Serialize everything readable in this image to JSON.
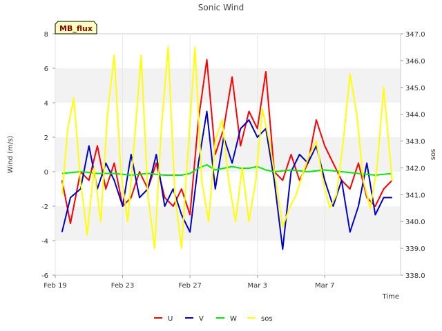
{
  "chart_data": {
    "type": "line",
    "title": "Sonic Wind",
    "badge": "MB_flux",
    "xlabel": "Time",
    "ylabel": "Wind (m/s)",
    "y2label": "sos",
    "x_range_days": [
      0,
      20.5
    ],
    "xticks": [
      {
        "day": 0,
        "label": "Feb 19"
      },
      {
        "day": 4,
        "label": "Feb 23"
      },
      {
        "day": 8,
        "label": "Feb 27"
      },
      {
        "day": 12,
        "label": "Mar 3"
      },
      {
        "day": 16,
        "label": "Mar 7"
      }
    ],
    "ylim": [
      -6,
      8
    ],
    "yticks": [
      -6,
      -4,
      -2,
      0,
      2,
      4,
      6,
      8
    ],
    "y2lim": [
      338.0,
      347.0
    ],
    "y2ticks": [
      "338.0",
      "339.0",
      "340.0",
      "341.0",
      "342.0",
      "343.0",
      "344.0",
      "345.0",
      "346.0",
      "347.0"
    ],
    "grid_bands": [
      [
        -4,
        -2
      ],
      [
        0,
        2
      ],
      [
        4,
        6
      ]
    ],
    "band_color": "#f2f2f2",
    "legend": {
      "position": "bottom-center"
    },
    "series": [
      {
        "name": "U",
        "axis": "left",
        "color": "#ff0000",
        "x": [
          0.4,
          0.9,
          1.5,
          2.0,
          2.5,
          3.0,
          3.5,
          4.0,
          4.5,
          5.0,
          5.5,
          6.0,
          6.5,
          7.0,
          7.5,
          8.0,
          8.5,
          9.0,
          9.5,
          10.0,
          10.5,
          11.0,
          11.5,
          12.0,
          12.5,
          13.0,
          13.5,
          14.0,
          14.5,
          15.0,
          15.5,
          16.0,
          16.5,
          17.0,
          17.5,
          18.0,
          18.5,
          19.0,
          19.5,
          20.0
        ],
        "values": [
          -0.5,
          -3.0,
          0.0,
          -0.5,
          1.5,
          -1.0,
          0.5,
          -2.0,
          -1.5,
          0.0,
          -1.0,
          0.5,
          -1.5,
          -2.0,
          -1.0,
          -2.5,
          3.0,
          6.5,
          1.0,
          2.5,
          5.5,
          1.5,
          3.5,
          2.5,
          5.8,
          0.0,
          -0.5,
          1.0,
          -0.5,
          0.5,
          3.0,
          1.5,
          0.5,
          -0.5,
          -1.0,
          0.5,
          -1.5,
          -2.0,
          -1.0,
          -0.5
        ]
      },
      {
        "name": "V",
        "axis": "left",
        "color": "#0000cc",
        "x": [
          0.4,
          0.9,
          1.5,
          2.0,
          2.5,
          3.0,
          3.5,
          4.0,
          4.5,
          5.0,
          5.5,
          6.0,
          6.5,
          7.0,
          7.5,
          8.0,
          8.5,
          9.0,
          9.5,
          10.0,
          10.5,
          11.0,
          11.5,
          12.0,
          12.5,
          13.0,
          13.5,
          14.0,
          14.5,
          15.0,
          15.5,
          16.0,
          16.5,
          17.0,
          17.5,
          18.0,
          18.5,
          19.0,
          19.5,
          20.0
        ],
        "values": [
          -3.5,
          -1.5,
          -1.0,
          1.5,
          -1.0,
          0.5,
          -0.5,
          -2.0,
          1.0,
          -1.5,
          -1.0,
          1.0,
          -2.0,
          -1.0,
          -2.5,
          -3.5,
          0.5,
          3.5,
          -1.0,
          2.0,
          0.5,
          2.5,
          3.0,
          2.0,
          2.5,
          -0.5,
          -4.5,
          0.0,
          1.0,
          0.5,
          1.5,
          -0.5,
          -2.0,
          -0.5,
          -3.5,
          -2.0,
          0.5,
          -2.5,
          -1.5,
          -1.5
        ]
      },
      {
        "name": "W",
        "axis": "left",
        "color": "#00ee00",
        "x": [
          0.4,
          1.5,
          2.5,
          3.5,
          4.5,
          5.5,
          6.5,
          7.5,
          8.0,
          8.5,
          9.0,
          9.5,
          10.0,
          10.5,
          11.0,
          11.5,
          12.0,
          12.5,
          13.0,
          14.0,
          15.0,
          16.0,
          17.0,
          18.0,
          19.0,
          20.0
        ],
        "values": [
          -0.1,
          0.0,
          -0.1,
          -0.1,
          -0.2,
          -0.1,
          -0.2,
          -0.2,
          -0.1,
          0.2,
          0.4,
          0.1,
          0.2,
          0.3,
          0.2,
          0.2,
          0.3,
          0.1,
          0.0,
          0.1,
          0.0,
          0.1,
          0.0,
          -0.1,
          -0.2,
          -0.1
        ]
      },
      {
        "name": "sos",
        "axis": "right",
        "color": "#ffff00",
        "x": [
          0.4,
          0.75,
          1.1,
          1.5,
          1.9,
          2.3,
          2.7,
          3.1,
          3.5,
          3.9,
          4.3,
          4.7,
          5.1,
          5.5,
          5.9,
          6.3,
          6.7,
          7.1,
          7.5,
          7.9,
          8.3,
          8.7,
          9.1,
          9.5,
          9.9,
          10.3,
          10.7,
          11.1,
          11.5,
          11.9,
          12.3,
          12.7,
          13.1,
          13.5,
          13.9,
          14.3,
          14.7,
          15.1,
          15.5,
          15.9,
          16.3,
          16.7,
          17.1,
          17.5,
          17.9,
          18.3,
          18.7,
          19.1,
          19.5,
          20.0
        ],
        "values": [
          341.0,
          343.5,
          344.6,
          341.5,
          339.5,
          342.0,
          340.0,
          344.0,
          346.2,
          341.8,
          340.0,
          343.0,
          346.2,
          341.0,
          339.0,
          343.5,
          346.5,
          341.0,
          339.0,
          342.8,
          346.5,
          341.5,
          340.0,
          343.0,
          343.8,
          341.5,
          340.0,
          342.0,
          340.0,
          341.5,
          344.2,
          343.0,
          341.5,
          339.8,
          340.5,
          341.0,
          341.8,
          342.5,
          343.0,
          341.5,
          340.5,
          341.0,
          343.0,
          345.5,
          344.0,
          341.5,
          340.5,
          342.0,
          345.0,
          341.5
        ]
      }
    ]
  }
}
